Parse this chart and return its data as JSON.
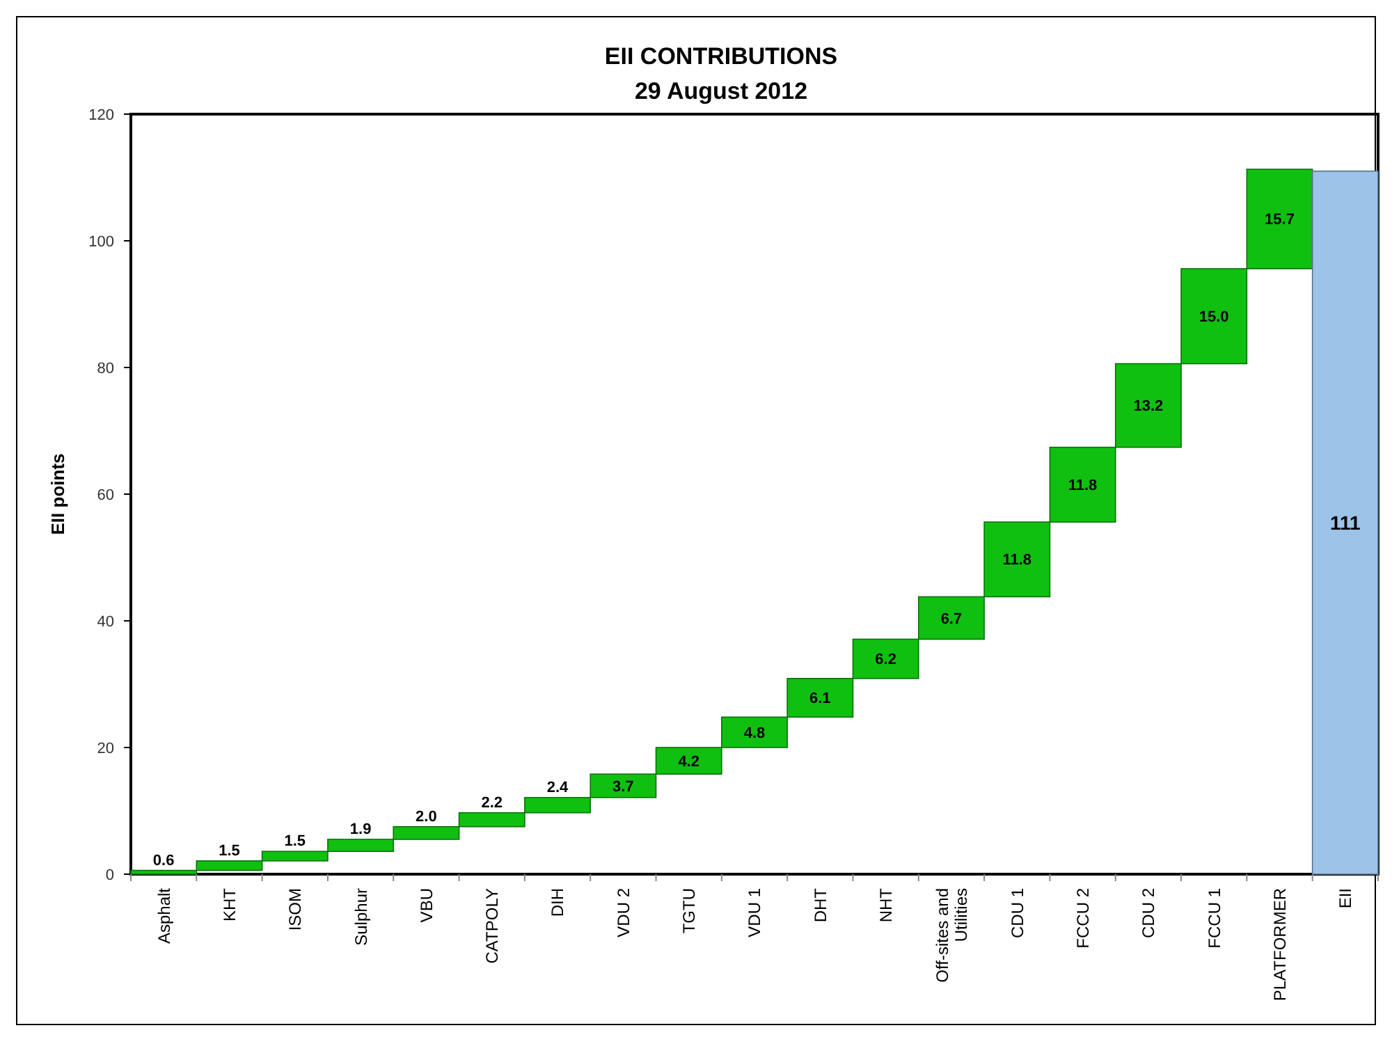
{
  "chart_data": {
    "type": "bar",
    "title": "EII CONTRIBUTIONS",
    "subtitle": "29 August 2012",
    "ylabel": "EII points",
    "categories": [
      "Asphalt",
      "KHT",
      "ISOM",
      "Sulphur",
      "VBU",
      "CATPOLY",
      "DIH",
      "VDU 2",
      "TGTU",
      "VDU 1",
      "DHT",
      "NHT",
      "Off-sites and Utilities",
      "CDU 1",
      "FCCU 2",
      "CDU 2",
      "FCCU 1",
      "PLATFORMER",
      "EII"
    ],
    "values": [
      0.6,
      1.5,
      1.5,
      1.9,
      2.0,
      2.2,
      2.4,
      3.7,
      4.2,
      4.8,
      6.1,
      6.2,
      6.7,
      11.8,
      11.8,
      13.2,
      15.0,
      15.7,
      111
    ],
    "base": [
      0,
      0.6,
      2.1,
      3.6,
      5.5,
      7.5,
      9.7,
      12.1,
      15.8,
      20.0,
      24.8,
      30.9,
      37.1,
      43.8,
      55.6,
      67.4,
      80.6,
      95.6,
      0
    ],
    "colors": [
      "#10c010",
      "#10c010",
      "#10c010",
      "#10c010",
      "#10c010",
      "#10c010",
      "#10c010",
      "#10c010",
      "#10c010",
      "#10c010",
      "#10c010",
      "#10c010",
      "#10c010",
      "#10c010",
      "#10c010",
      "#10c010",
      "#10c010",
      "#10c010",
      "#9cc3e8"
    ],
    "value_labels": [
      "0.6",
      "1.5",
      "1.5",
      "1.9",
      "2.0",
      "2.2",
      "2.4",
      "3.7",
      "4.2",
      "4.8",
      "6.1",
      "6.2",
      "6.7",
      "11.8",
      "11.8",
      "13.2",
      "15.0",
      "15.7",
      "111"
    ],
    "ylim": [
      0,
      120
    ],
    "yticks": [
      0,
      20,
      40,
      60,
      80,
      100,
      120
    ],
    "grid": false
  }
}
